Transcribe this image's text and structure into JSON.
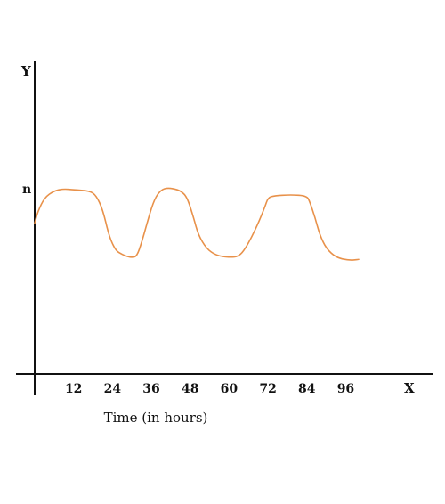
{
  "chart_data": {
    "type": "line",
    "xlabel": "Time (in hours)",
    "x_axis_letter": "X",
    "y_axis_letter": "Y",
    "y_mark_label": "n",
    "xlim": [
      0,
      112
    ],
    "ylim": [
      0,
      1.1
    ],
    "x_ticks": [
      12,
      24,
      36,
      48,
      60,
      72,
      84,
      96
    ],
    "y_mark_value": 1.0,
    "grid": false,
    "legend": "none",
    "series_color": "#e8914a",
    "series": [
      {
        "x": [
          0,
          1,
          3,
          6,
          9,
          12,
          17,
          19,
          21,
          23,
          25,
          27,
          28.5,
          30,
          31.5,
          33,
          35,
          37,
          39,
          41,
          43,
          45,
          47,
          49,
          50.5,
          53,
          56,
          60,
          63,
          65,
          67,
          69,
          71,
          72,
          74,
          79,
          84,
          85,
          86.5,
          88,
          90,
          93,
          97,
          100
        ],
        "y": [
          0.77,
          0.83,
          0.9,
          0.935,
          0.945,
          0.94,
          0.935,
          0.91,
          0.84,
          0.7,
          0.63,
          0.61,
          0.6,
          0.595,
          0.6,
          0.67,
          0.79,
          0.895,
          0.94,
          0.95,
          0.945,
          0.935,
          0.905,
          0.8,
          0.71,
          0.64,
          0.605,
          0.595,
          0.6,
          0.64,
          0.7,
          0.77,
          0.85,
          0.9,
          0.91,
          0.915,
          0.91,
          0.875,
          0.8,
          0.71,
          0.64,
          0.595,
          0.58,
          0.585
        ]
      }
    ]
  }
}
